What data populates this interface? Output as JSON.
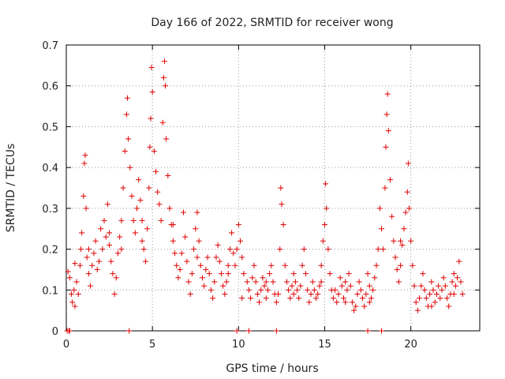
{
  "chart_data": {
    "type": "scatter",
    "title": "Day 166 of 2022, SRMTID for receiver wong",
    "xlabel": "GPS time / hours",
    "ylabel": "SRMTID / TECUs",
    "xlim": [
      0,
      24
    ],
    "ylim": [
      0,
      0.7
    ],
    "xticks": [
      0,
      5,
      10,
      15,
      20
    ],
    "yticks": [
      0,
      0.1,
      0.2,
      0.3,
      0.4,
      0.5,
      0.6,
      0.7
    ],
    "grid": true,
    "marker": "+",
    "color": "#e00000",
    "series": [
      {
        "name": "SRMTID",
        "points": [
          [
            0.1,
            0.145
          ],
          [
            0.2,
            0.13
          ],
          [
            0.3,
            0.09
          ],
          [
            0.35,
            0.07
          ],
          [
            0.45,
            0.1
          ],
          [
            0.5,
            0.06
          ],
          [
            0.6,
            0.12
          ],
          [
            0.7,
            0.09
          ],
          [
            0.8,
            0.16
          ],
          [
            0.85,
            0.2
          ],
          [
            0.9,
            0.24
          ],
          [
            1.0,
            0.33
          ],
          [
            1.05,
            0.41
          ],
          [
            1.1,
            0.43
          ],
          [
            1.15,
            0.3
          ],
          [
            1.2,
            0.18
          ],
          [
            1.3,
            0.14
          ],
          [
            1.4,
            0.11
          ],
          [
            1.5,
            0.16
          ],
          [
            1.6,
            0.19
          ],
          [
            1.7,
            0.22
          ],
          [
            1.8,
            0.15
          ],
          [
            1.9,
            0.17
          ],
          [
            2.0,
            0.25
          ],
          [
            2.1,
            0.2
          ],
          [
            2.2,
            0.27
          ],
          [
            2.3,
            0.23
          ],
          [
            2.4,
            0.31
          ],
          [
            2.5,
            0.21
          ],
          [
            2.6,
            0.17
          ],
          [
            2.7,
            0.14
          ],
          [
            2.8,
            0.09
          ],
          [
            2.9,
            0.13
          ],
          [
            3.0,
            0.19
          ],
          [
            3.1,
            0.23
          ],
          [
            3.2,
            0.27
          ],
          [
            3.3,
            0.35
          ],
          [
            3.4,
            0.44
          ],
          [
            3.5,
            0.53
          ],
          [
            3.55,
            0.57
          ],
          [
            3.6,
            0.47
          ],
          [
            3.7,
            0.4
          ],
          [
            3.8,
            0.33
          ],
          [
            3.9,
            0.27
          ],
          [
            4.0,
            0.24
          ],
          [
            4.1,
            0.3
          ],
          [
            4.2,
            0.37
          ],
          [
            4.3,
            0.32
          ],
          [
            4.4,
            0.27
          ],
          [
            4.5,
            0.2
          ],
          [
            4.6,
            0.17
          ],
          [
            4.7,
            0.25
          ],
          [
            4.8,
            0.35
          ],
          [
            4.85,
            0.45
          ],
          [
            4.9,
            0.52
          ],
          [
            4.95,
            0.645
          ],
          [
            5.0,
            0.585
          ],
          [
            5.1,
            0.44
          ],
          [
            5.2,
            0.39
          ],
          [
            5.3,
            0.34
          ],
          [
            5.4,
            0.31
          ],
          [
            5.5,
            0.27
          ],
          [
            5.6,
            0.51
          ],
          [
            5.65,
            0.62
          ],
          [
            5.7,
            0.66
          ],
          [
            5.75,
            0.6
          ],
          [
            5.8,
            0.47
          ],
          [
            5.9,
            0.38
          ],
          [
            6.0,
            0.3
          ],
          [
            6.1,
            0.26
          ],
          [
            6.2,
            0.22
          ],
          [
            6.3,
            0.19
          ],
          [
            6.4,
            0.16
          ],
          [
            6.5,
            0.13
          ],
          [
            6.6,
            0.15
          ],
          [
            6.7,
            0.19
          ],
          [
            6.8,
            0.29
          ],
          [
            6.9,
            0.23
          ],
          [
            7.0,
            0.17
          ],
          [
            7.1,
            0.12
          ],
          [
            7.2,
            0.09
          ],
          [
            7.3,
            0.14
          ],
          [
            7.4,
            0.2
          ],
          [
            7.5,
            0.25
          ],
          [
            7.6,
            0.29
          ],
          [
            7.7,
            0.22
          ],
          [
            7.8,
            0.16
          ],
          [
            7.9,
            0.13
          ],
          [
            8.0,
            0.11
          ],
          [
            8.1,
            0.15
          ],
          [
            8.2,
            0.18
          ],
          [
            8.3,
            0.14
          ],
          [
            8.4,
            0.1
          ],
          [
            8.5,
            0.08
          ],
          [
            8.6,
            0.12
          ],
          [
            8.7,
            0.18
          ],
          [
            8.8,
            0.21
          ],
          [
            8.9,
            0.17
          ],
          [
            9.0,
            0.14
          ],
          [
            9.1,
            0.11
          ],
          [
            9.2,
            0.09
          ],
          [
            9.3,
            0.12
          ],
          [
            9.4,
            0.16
          ],
          [
            9.5,
            0.2
          ],
          [
            9.6,
            0.24
          ],
          [
            9.7,
            0.19
          ],
          [
            9.8,
            0.16
          ],
          [
            9.9,
            0.2
          ],
          [
            10.0,
            0.26
          ],
          [
            10.1,
            0.22
          ],
          [
            10.2,
            0.18
          ],
          [
            10.3,
            0.14
          ],
          [
            10.5,
            0.12
          ],
          [
            10.6,
            0.1
          ],
          [
            10.7,
            0.08
          ],
          [
            10.8,
            0.13
          ],
          [
            10.9,
            0.16
          ],
          [
            11.0,
            0.12
          ],
          [
            11.1,
            0.09
          ],
          [
            11.2,
            0.07
          ],
          [
            11.3,
            0.1
          ],
          [
            11.4,
            0.13
          ],
          [
            11.5,
            0.11
          ],
          [
            11.6,
            0.08
          ],
          [
            11.7,
            0.1
          ],
          [
            11.8,
            0.14
          ],
          [
            11.9,
            0.16
          ],
          [
            12.0,
            0.12
          ],
          [
            12.1,
            0.09
          ],
          [
            12.2,
            0.07
          ],
          [
            12.3,
            0.09
          ],
          [
            12.4,
            0.2
          ],
          [
            12.45,
            0.35
          ],
          [
            12.5,
            0.31
          ],
          [
            12.6,
            0.26
          ],
          [
            12.7,
            0.16
          ],
          [
            12.8,
            0.12
          ],
          [
            12.9,
            0.1
          ],
          [
            13.0,
            0.08
          ],
          [
            13.1,
            0.11
          ],
          [
            13.2,
            0.14
          ],
          [
            13.3,
            0.12
          ],
          [
            13.4,
            0.1
          ],
          [
            13.5,
            0.08
          ],
          [
            13.6,
            0.11
          ],
          [
            13.7,
            0.16
          ],
          [
            13.8,
            0.2
          ],
          [
            13.9,
            0.14
          ],
          [
            14.0,
            0.1
          ],
          [
            14.1,
            0.07
          ],
          [
            14.2,
            0.09
          ],
          [
            14.3,
            0.12
          ],
          [
            14.4,
            0.1
          ],
          [
            14.5,
            0.08
          ],
          [
            14.6,
            0.09
          ],
          [
            14.7,
            0.11
          ],
          [
            14.8,
            0.16
          ],
          [
            14.9,
            0.22
          ],
          [
            15.0,
            0.26
          ],
          [
            15.05,
            0.36
          ],
          [
            15.1,
            0.3
          ],
          [
            15.2,
            0.2
          ],
          [
            15.3,
            0.14
          ],
          [
            15.4,
            0.1
          ],
          [
            15.5,
            0.08
          ],
          [
            15.6,
            0.1
          ],
          [
            15.7,
            0.07
          ],
          [
            15.8,
            0.09
          ],
          [
            15.9,
            0.13
          ],
          [
            16.0,
            0.11
          ],
          [
            16.1,
            0.08
          ],
          [
            16.2,
            0.07
          ],
          [
            16.3,
            0.1
          ],
          [
            16.4,
            0.14
          ],
          [
            16.5,
            0.11
          ],
          [
            16.6,
            0.07
          ],
          [
            16.7,
            0.05
          ],
          [
            16.8,
            0.06
          ],
          [
            16.9,
            0.09
          ],
          [
            17.0,
            0.12
          ],
          [
            17.1,
            0.1
          ],
          [
            17.2,
            0.08
          ],
          [
            17.3,
            0.06
          ],
          [
            17.4,
            0.09
          ],
          [
            17.5,
            0.14
          ],
          [
            17.6,
            0.11
          ],
          [
            17.7,
            0.08
          ],
          [
            17.8,
            0.1
          ],
          [
            17.9,
            0.13
          ],
          [
            18.0,
            0.16
          ],
          [
            18.1,
            0.2
          ],
          [
            18.2,
            0.3
          ],
          [
            18.3,
            0.25
          ],
          [
            18.4,
            0.2
          ],
          [
            18.5,
            0.35
          ],
          [
            18.55,
            0.45
          ],
          [
            18.6,
            0.53
          ],
          [
            18.65,
            0.58
          ],
          [
            18.7,
            0.49
          ],
          [
            18.8,
            0.37
          ],
          [
            18.9,
            0.28
          ],
          [
            19.0,
            0.22
          ],
          [
            19.1,
            0.18
          ],
          [
            19.2,
            0.15
          ],
          [
            19.3,
            0.12
          ],
          [
            19.4,
            0.16
          ],
          [
            19.5,
            0.21
          ],
          [
            19.6,
            0.25
          ],
          [
            19.7,
            0.29
          ],
          [
            19.8,
            0.34
          ],
          [
            19.85,
            0.41
          ],
          [
            19.9,
            0.3
          ],
          [
            20.0,
            0.22
          ],
          [
            20.1,
            0.16
          ],
          [
            20.2,
            0.11
          ],
          [
            20.3,
            0.07
          ],
          [
            20.4,
            0.05
          ],
          [
            20.5,
            0.08
          ],
          [
            20.6,
            0.11
          ],
          [
            20.7,
            0.14
          ],
          [
            20.8,
            0.1
          ],
          [
            20.9,
            0.08
          ],
          [
            21.0,
            0.06
          ],
          [
            21.1,
            0.09
          ],
          [
            21.2,
            0.12
          ],
          [
            21.3,
            0.1
          ],
          [
            21.4,
            0.07
          ],
          [
            21.5,
            0.09
          ],
          [
            21.6,
            0.11
          ],
          [
            21.7,
            0.08
          ],
          [
            21.8,
            0.1
          ],
          [
            21.9,
            0.13
          ],
          [
            22.0,
            0.11
          ],
          [
            22.1,
            0.08
          ],
          [
            22.2,
            0.06
          ],
          [
            22.3,
            0.09
          ],
          [
            22.4,
            0.12
          ],
          [
            22.5,
            0.14
          ],
          [
            22.6,
            0.11
          ],
          [
            22.7,
            0.13
          ],
          [
            22.8,
            0.17
          ],
          [
            22.9,
            0.12
          ],
          [
            23.0,
            0.09
          ],
          [
            0.5,
            0.165
          ],
          [
            1.3,
            0.2
          ],
          [
            2.5,
            0.24
          ],
          [
            3.2,
            0.2
          ],
          [
            4.4,
            0.22
          ],
          [
            6.2,
            0.26
          ],
          [
            7.6,
            0.18
          ],
          [
            9.4,
            0.14
          ],
          [
            10.2,
            0.08
          ],
          [
            11.6,
            0.12
          ],
          [
            13.2,
            0.09
          ],
          [
            14.8,
            0.12
          ],
          [
            16.2,
            0.12
          ],
          [
            17.6,
            0.07
          ],
          [
            19.4,
            0.22
          ],
          [
            21.2,
            0.06
          ],
          [
            22.5,
            0.09
          ],
          [
            0.05,
            0.0
          ],
          [
            0.15,
            0.0
          ],
          [
            0.2,
            0.0
          ],
          [
            3.65,
            0.0
          ],
          [
            9.9,
            0.0
          ],
          [
            10.6,
            0.0
          ],
          [
            12.2,
            0.0
          ],
          [
            17.5,
            0.0
          ],
          [
            18.3,
            0.0
          ]
        ]
      }
    ]
  }
}
